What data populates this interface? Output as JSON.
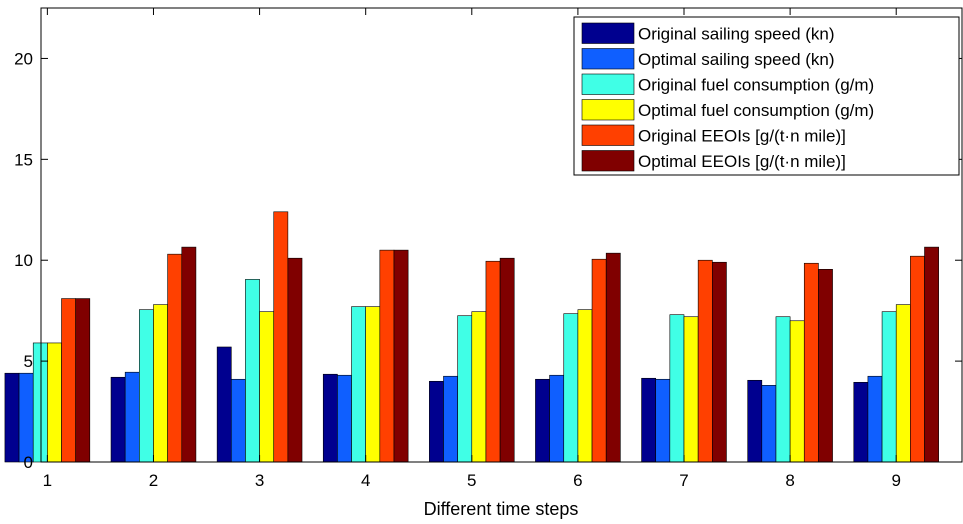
{
  "chart_data": {
    "type": "bar",
    "title": "",
    "xlabel": "Different time steps",
    "ylabel": "",
    "categories": [
      "1",
      "2",
      "3",
      "4",
      "5",
      "6",
      "7",
      "8",
      "9"
    ],
    "ylim": [
      0,
      22.5
    ],
    "yticks": [
      0,
      5,
      10,
      15,
      20
    ],
    "grid": false,
    "legend_position": "top-right",
    "series": [
      {
        "name": "Original sailing speed (kn)",
        "color": "#00008F",
        "values": [
          4.4,
          4.2,
          5.7,
          4.35,
          4.0,
          4.1,
          4.15,
          4.05,
          3.95
        ]
      },
      {
        "name": "Optimal sailing speed (kn)",
        "color": "#0F5FFF",
        "values": [
          4.4,
          4.45,
          4.1,
          4.3,
          4.25,
          4.3,
          4.1,
          3.8,
          4.25
        ]
      },
      {
        "name": "Original fuel consumption (g/m)",
        "color": "#40FFE6",
        "values": [
          5.9,
          7.55,
          9.05,
          7.7,
          7.25,
          7.35,
          7.3,
          7.2,
          7.45
        ]
      },
      {
        "name": "Optimal fuel consumption (g/m)",
        "color": "#FFFF00",
        "values": [
          5.9,
          7.8,
          7.45,
          7.7,
          7.45,
          7.55,
          7.2,
          7.0,
          7.8
        ]
      },
      {
        "name": "Original EEOIs [g/(t·n mile)]",
        "color": "#FF4000",
        "values": [
          8.1,
          10.3,
          12.4,
          10.5,
          9.95,
          10.05,
          10.0,
          9.85,
          10.2
        ]
      },
      {
        "name": "Optimal EEOIs [g/(t·n mile)]",
        "color": "#800000",
        "values": [
          8.1,
          10.65,
          10.1,
          10.5,
          10.1,
          10.35,
          9.9,
          9.55,
          10.65
        ]
      }
    ]
  }
}
